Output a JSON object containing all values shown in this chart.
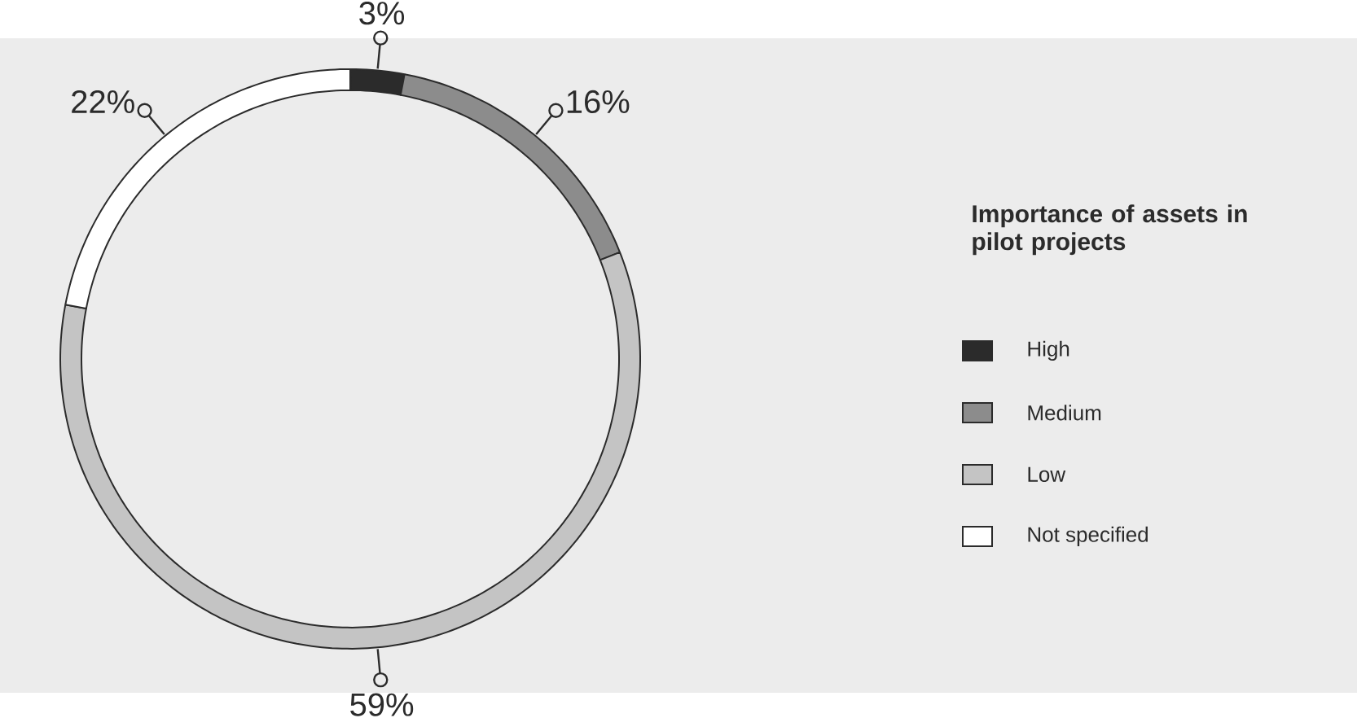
{
  "chart_data": {
    "type": "donut",
    "legend_title": "Importance of assets in pilot projects",
    "legend": "right",
    "categories": [
      "High",
      "Medium",
      "Low",
      "Not specified"
    ],
    "values": [
      3,
      16,
      59,
      22
    ],
    "value_labels": [
      "3%",
      "16%",
      "59%",
      "22%"
    ],
    "colors": [
      "#2b2b2b",
      "#8c8c8c",
      "#c4c4c4",
      "#ffffff"
    ]
  }
}
